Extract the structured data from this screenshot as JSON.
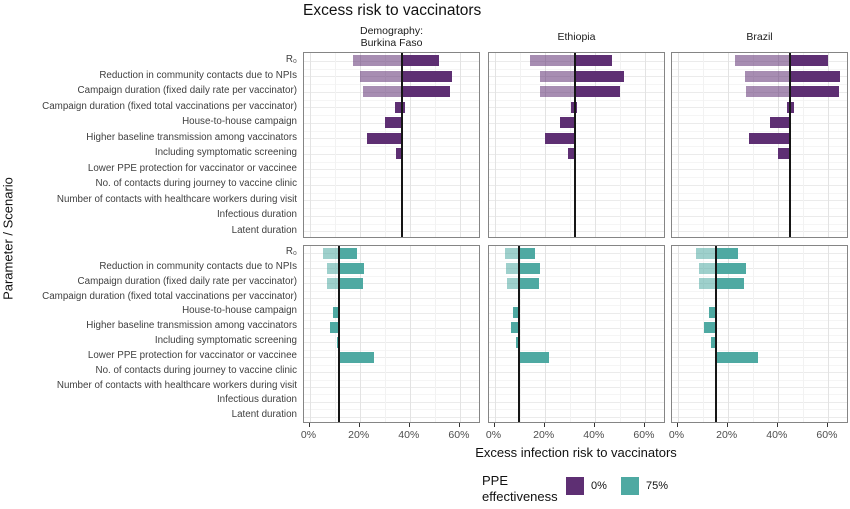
{
  "chart_data": {
    "type": "bar",
    "subtype": "horizontal-tornado-faceted",
    "title": "Excess risk to vaccinators",
    "xlabel": "Excess infection risk to vaccinators",
    "ylabel": "Parameter / Scenario",
    "facet_columns": [
      [
        "Demography:",
        "Burkina Faso"
      ],
      [
        "Ethiopia"
      ],
      [
        "Brazil"
      ]
    ],
    "facet_rows": [
      {
        "ppe_effectiveness": "0%"
      },
      {
        "ppe_effectiveness": "75%"
      }
    ],
    "categories": [
      "R₀",
      "Reduction in community contacts due to NPIs",
      "Campaign duration (fixed daily rate per vaccinator)",
      "Campaign duration (fixed total vaccinations per vaccinator)",
      "House-to-house campaign",
      "Higher baseline transmission among vaccinators",
      "Including symptomatic screening",
      "Lower PPE protection for vaccinator or vaccinee",
      "No. of contacts during journey to vaccine clinic",
      "Number of contacts with healthcare workers during visit",
      "Infectious duration",
      "Latent duration"
    ],
    "x_ticks": [
      {
        "value": 0,
        "label": "0%"
      },
      {
        "value": 20,
        "label": "20%"
      },
      {
        "value": 40,
        "label": "40%"
      },
      {
        "value": 60,
        "label": "60%"
      }
    ],
    "x_minor_gridlines": [
      10,
      30,
      50
    ],
    "x_domain": [
      -2.2,
      68.4
    ],
    "colors": {
      "ppe_0": "#5e2f73",
      "ppe_75": "#4ea9a2",
      "light_alpha": 0.55,
      "grid_major": "#e3e3e3",
      "grid_minor": "#f2f2f2",
      "hgrid_center": "#ebebeb",
      "hgrid_boundary": "#f5f5f5",
      "panel_border": "#858585",
      "baseline": "#161616"
    },
    "panels": [
      {
        "facet_row": 0,
        "facet_col": 0,
        "baseline": 37,
        "bars": [
          {
            "category": 0,
            "light": [
              17.5,
              37
            ],
            "dark": [
              37,
              51.5
            ]
          },
          {
            "category": 1,
            "light": [
              20,
              37
            ],
            "dark": [
              37,
              57
            ]
          },
          {
            "category": 2,
            "light": [
              21.5,
              37
            ],
            "dark": [
              37,
              56
            ]
          },
          {
            "category": 3,
            "dark": [
              34,
              38
            ]
          },
          {
            "category": 4,
            "dark": [
              30,
              37
            ]
          },
          {
            "category": 5,
            "dark": [
              23,
              37
            ]
          },
          {
            "category": 6,
            "dark": [
              34.5,
              37
            ]
          }
        ]
      },
      {
        "facet_row": 0,
        "facet_col": 1,
        "baseline": 32,
        "bars": [
          {
            "category": 0,
            "light": [
              14,
              32
            ],
            "dark": [
              32,
              47
            ]
          },
          {
            "category": 1,
            "light": [
              18,
              32
            ],
            "dark": [
              32,
              51.5
            ]
          },
          {
            "category": 2,
            "light": [
              18.3,
              32
            ],
            "dark": [
              32,
              50
            ]
          },
          {
            "category": 3,
            "dark": [
              30.5,
              33
            ]
          },
          {
            "category": 4,
            "dark": [
              26,
              32
            ]
          },
          {
            "category": 5,
            "dark": [
              20,
              32
            ]
          },
          {
            "category": 6,
            "dark": [
              29.5,
              32
            ]
          }
        ]
      },
      {
        "facet_row": 0,
        "facet_col": 2,
        "baseline": 45,
        "bars": [
          {
            "category": 0,
            "light": [
              23,
              45
            ],
            "dark": [
              45,
              60
            ]
          },
          {
            "category": 1,
            "light": [
              27,
              45
            ],
            "dark": [
              45,
              65
            ]
          },
          {
            "category": 2,
            "light": [
              27.5,
              45
            ],
            "dark": [
              45,
              64.5
            ]
          },
          {
            "category": 3,
            "dark": [
              43.5,
              46.5
            ]
          },
          {
            "category": 4,
            "dark": [
              37,
              45
            ]
          },
          {
            "category": 5,
            "dark": [
              28.5,
              45
            ]
          },
          {
            "category": 6,
            "dark": [
              40,
              45
            ]
          }
        ]
      },
      {
        "facet_row": 1,
        "facet_col": 0,
        "baseline": 11.7,
        "bars": [
          {
            "category": 0,
            "light": [
              5.5,
              11.7
            ],
            "dark": [
              11.7,
              19
            ]
          },
          {
            "category": 1,
            "light": [
              7,
              11.7
            ],
            "dark": [
              11.7,
              21.6
            ]
          },
          {
            "category": 2,
            "light": [
              7,
              11.7
            ],
            "dark": [
              11.7,
              21.4
            ]
          },
          {
            "category": 4,
            "dark": [
              9.4,
              12
            ]
          },
          {
            "category": 5,
            "dark": [
              8,
              11.7
            ]
          },
          {
            "category": 6,
            "dark": [
              10.8,
              11.7
            ]
          },
          {
            "category": 7,
            "dark": [
              11.7,
              25.6
            ]
          }
        ]
      },
      {
        "facet_row": 1,
        "facet_col": 1,
        "baseline": 9.7,
        "bars": [
          {
            "category": 0,
            "light": [
              4,
              9.7
            ],
            "dark": [
              9.7,
              16.2
            ]
          },
          {
            "category": 1,
            "light": [
              4.7,
              9.7
            ],
            "dark": [
              9.7,
              18.3
            ]
          },
          {
            "category": 2,
            "light": [
              5,
              9.7
            ],
            "dark": [
              9.7,
              17.9
            ]
          },
          {
            "category": 4,
            "dark": [
              7.3,
              9.7
            ]
          },
          {
            "category": 5,
            "dark": [
              6.4,
              9.7
            ]
          },
          {
            "category": 6,
            "dark": [
              8.6,
              9.7
            ]
          },
          {
            "category": 7,
            "dark": [
              9.7,
              21.6
            ]
          }
        ]
      },
      {
        "facet_row": 1,
        "facet_col": 2,
        "baseline": 15.4,
        "bars": [
          {
            "category": 0,
            "light": [
              7.3,
              15.4
            ],
            "dark": [
              15.4,
              24
            ]
          },
          {
            "category": 1,
            "light": [
              8.4,
              15.4
            ],
            "dark": [
              15.4,
              27.2
            ]
          },
          {
            "category": 2,
            "light": [
              8.6,
              15.4
            ],
            "dark": [
              15.4,
              26.7
            ]
          },
          {
            "category": 4,
            "dark": [
              12.6,
              15.4
            ]
          },
          {
            "category": 5,
            "dark": [
              10.4,
              15.4
            ]
          },
          {
            "category": 6,
            "dark": [
              13.4,
              15.4
            ]
          },
          {
            "category": 7,
            "dark": [
              15.4,
              32
            ]
          }
        ]
      }
    ]
  },
  "legend": {
    "title_lines": [
      "PPE",
      "effectiveness"
    ],
    "items": [
      {
        "label": "0%",
        "color": "#5e2f73"
      },
      {
        "label": "75%",
        "color": "#4ea9a2"
      }
    ]
  }
}
